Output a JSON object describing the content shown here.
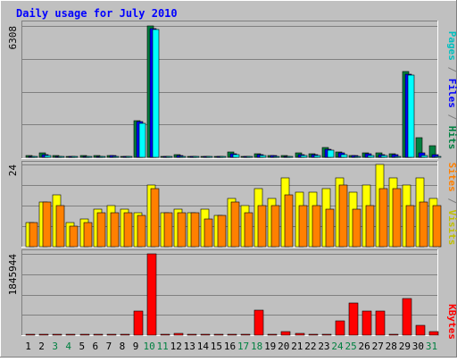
{
  "chart_data": [
    {
      "type": "bar",
      "title": "Daily usage for July 2010",
      "categories": [
        "1",
        "2",
        "3",
        "4",
        "5",
        "6",
        "7",
        "8",
        "9",
        "10",
        "11",
        "12",
        "13",
        "14",
        "15",
        "16",
        "17",
        "18",
        "19",
        "20",
        "21",
        "22",
        "23",
        "24",
        "25",
        "26",
        "27",
        "28",
        "29",
        "30",
        "31"
      ],
      "weekend_days": [
        "3",
        "4",
        "10",
        "11",
        "17",
        "18",
        "24",
        "25",
        "31"
      ],
      "panels": [
        {
          "id": "hits",
          "max_label": "6308",
          "ylim": [
            0,
            6308
          ],
          "series": [
            {
              "name": "Hits",
              "color": "#008040",
              "values": [
                80,
                220,
                80,
                50,
                80,
                80,
                100,
                60,
                1780,
                6308,
                50,
                120,
                60,
                50,
                50,
                250,
                50,
                160,
                100,
                80,
                200,
                180,
                480,
                250,
                100,
                220,
                200,
                160,
                4100,
                950,
                570
              ]
            },
            {
              "name": "Files",
              "color": "#0000ff",
              "values": [
                60,
                150,
                60,
                40,
                60,
                60,
                80,
                50,
                1700,
                6200,
                40,
                90,
                50,
                40,
                40,
                180,
                40,
                120,
                80,
                60,
                150,
                140,
                400,
                200,
                80,
                160,
                150,
                120,
                4000,
                200,
                150
              ]
            },
            {
              "name": "Pages",
              "color": "#00ffff",
              "values": [
                30,
                80,
                30,
                20,
                30,
                30,
                40,
                25,
                1650,
                6150,
                20,
                50,
                25,
                20,
                20,
                120,
                20,
                80,
                40,
                30,
                80,
                70,
                350,
                150,
                40,
                90,
                70,
                60,
                3950,
                80,
                60
              ]
            }
          ]
        },
        {
          "id": "visits",
          "max_label": "24",
          "ylim": [
            0,
            24
          ],
          "series": [
            {
              "name": "Visits",
              "color": "#ffff00",
              "values": [
                7,
                13,
                15,
                7,
                8,
                11,
                12,
                11,
                10,
                18,
                10,
                11,
                10,
                11,
                9,
                14,
                12,
                17,
                14,
                20,
                16,
                16,
                17,
                20,
                16,
                18,
                24,
                20,
                18,
                20,
                14
              ]
            },
            {
              "name": "Sites",
              "color": "#ff8000",
              "values": [
                7,
                13,
                12,
                6,
                7,
                10,
                10,
                10,
                9,
                17,
                10,
                10,
                10,
                8,
                9,
                13,
                10,
                12,
                12,
                15,
                12,
                12,
                11,
                18,
                11,
                12,
                17,
                17,
                12,
                13,
                12
              ]
            }
          ]
        },
        {
          "id": "kbytes",
          "max_label": "1845944",
          "ylim": [
            0,
            1845944
          ],
          "series": [
            {
              "name": "KBytes",
              "color": "#ff0000",
              "values": [
                15000,
                15000,
                15000,
                15000,
                15000,
                15000,
                15000,
                15000,
                540000,
                1845944,
                15000,
                40000,
                15000,
                15000,
                15000,
                15000,
                15000,
                570000,
                15000,
                80000,
                45000,
                25000,
                25000,
                330000,
                730000,
                550000,
                550000,
                30000,
                830000,
                220000,
                80000
              ]
            }
          ]
        }
      ],
      "right_labels": {
        "hits_panel": [
          {
            "text": "Pages",
            "color": "#00c0c0"
          },
          {
            "text": " / ",
            "color": "#808080"
          },
          {
            "text": "Files",
            "color": "#0000ff"
          },
          {
            "text": " / ",
            "color": "#808080"
          },
          {
            "text": "Hits",
            "color": "#008040"
          }
        ],
        "visits_panel": [
          {
            "text": "Sites",
            "color": "#ff8000"
          },
          {
            "text": " / ",
            "color": "#808080"
          },
          {
            "text": "Visits",
            "color": "#c0c000"
          }
        ],
        "kbytes_panel": [
          {
            "text": "KBytes",
            "color": "#ff0000"
          }
        ]
      },
      "colors": {
        "title": "#0000ff",
        "panel_bg": "#c0c0c0",
        "frame_bg": "#c0c0c0",
        "gridline": "#808080",
        "weekday_label": "#000000",
        "weekend_label": "#008040"
      }
    }
  ]
}
